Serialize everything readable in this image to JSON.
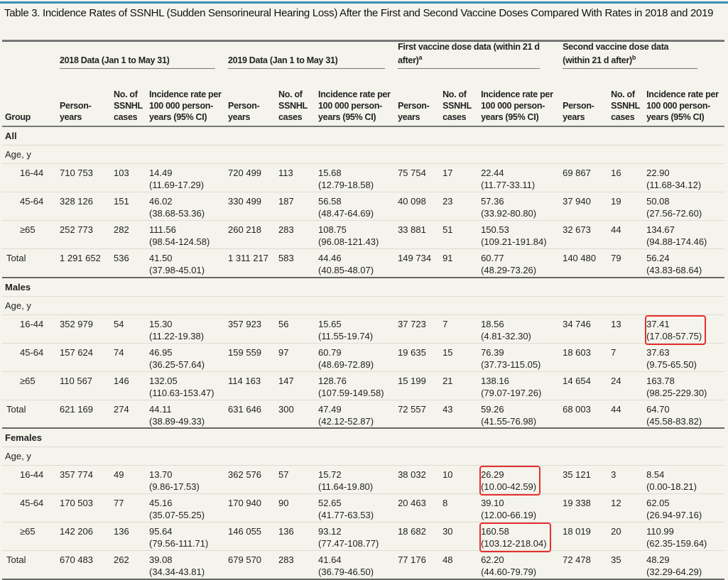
{
  "title": "Table 3. Incidence Rates of SSNHL (Sudden Sensorineural Hearing Loss) After the First and Second Vaccine Doses Compared With Rates in 2018 and 2019",
  "colors": {
    "accent_bar": "#3b8fb8",
    "highlight_box": "#e53030",
    "background": "#f4f3ec"
  },
  "header": {
    "groups": [
      {
        "label": "2018 Data (Jan 1 to May 31)",
        "sup": ""
      },
      {
        "label": "2019 Data (Jan 1 to May 31)",
        "sup": ""
      },
      {
        "label": "First vaccine dose data (within 21 d after)",
        "sup": "a"
      },
      {
        "label": "Second vaccine dose data (within 21 d after)",
        "sup": "b"
      }
    ],
    "group_col": "Group",
    "person_years": "Person-years",
    "cases_a": "No. of SSNHL cases",
    "rate": "Incidence rate per 100 000 person-years (95% CI)"
  },
  "age_label": "Age, y",
  "sections": [
    {
      "name": "All",
      "rows": [
        {
          "group": "16-44",
          "cells": [
            "710 753",
            "103",
            "14.49",
            "(11.69-17.29)",
            "720 499",
            "113",
            "15.68",
            "(12.79-18.58)",
            "75 754",
            "17",
            "22.44",
            "(11.77-33.11)",
            "69 867",
            "16",
            "22.90",
            "(11.68-34.12)"
          ],
          "highlight": []
        },
        {
          "group": "45-64",
          "cells": [
            "328 126",
            "151",
            "46.02",
            "(38.68-53.36)",
            "330 499",
            "187",
            "56.58",
            "(48.47-64.69)",
            "40 098",
            "23",
            "57.36",
            "(33.92-80.80)",
            "37 940",
            "19",
            "50.08",
            "(27.56-72.60)"
          ],
          "highlight": []
        },
        {
          "group": "≥65",
          "cells": [
            "252 773",
            "282",
            "111.56",
            "(98.54-124.58)",
            "260 218",
            "283",
            "108.75",
            "(96.08-121.43)",
            "33 881",
            "51",
            "150.53",
            "(109.21-191.84)",
            "32 673",
            "44",
            "134.67",
            "(94.88-174.46)"
          ],
          "highlight": []
        },
        {
          "group": "Total",
          "cells": [
            "1 291 652",
            "536",
            "41.50",
            "(37.98-45.01)",
            "1 311 217",
            "583",
            "44.46",
            "(40.85-48.07)",
            "149 734",
            "91",
            "60.77",
            "(48.29-73.26)",
            "140 480",
            "79",
            "56.24",
            "(43.83-68.64)"
          ],
          "highlight": []
        }
      ]
    },
    {
      "name": "Males",
      "rows": [
        {
          "group": "16-44",
          "cells": [
            "352 979",
            "54",
            "15.30",
            "(11.22-19.38)",
            "357 923",
            "56",
            "15.65",
            "(11.55-19.74)",
            "37 723",
            "7",
            "18.56",
            "(4.81-32.30)",
            "34 746",
            "13",
            "37.41",
            "(17.08-57.75)"
          ],
          "highlight": [
            3
          ]
        },
        {
          "group": "45-64",
          "cells": [
            "157 624",
            "74",
            "46.95",
            "(36.25-57.64)",
            "159 559",
            "97",
            "60.79",
            "(48.69-72.89)",
            "19 635",
            "15",
            "76.39",
            "(37.73-115.05)",
            "18 603",
            "7",
            "37.63",
            "(9.75-65.50)"
          ],
          "highlight": []
        },
        {
          "group": "≥65",
          "cells": [
            "110 567",
            "146",
            "132.05",
            "(110.63-153.47)",
            "114 163",
            "147",
            "128.76",
            "(107.59-149.58)",
            "15 199",
            "21",
            "138.16",
            "(79.07-197.26)",
            "14 654",
            "24",
            "163.78",
            "(98.25-229.30)"
          ],
          "highlight": []
        },
        {
          "group": "Total",
          "cells": [
            "621 169",
            "274",
            "44.11",
            "(38.89-49.33)",
            "631 646",
            "300",
            "47.49",
            "(42.12-52.87)",
            "72 557",
            "43",
            "59.26",
            "(41.55-76.98)",
            "68 003",
            "44",
            "64.70",
            "(45.58-83.82)"
          ],
          "highlight": []
        }
      ]
    },
    {
      "name": "Females",
      "rows": [
        {
          "group": "16-44",
          "cells": [
            "357 774",
            "49",
            "13.70",
            "(9.86-17.53)",
            "362 576",
            "57",
            "15.72",
            "(11.64-19.80)",
            "38 032",
            "10",
            "26.29",
            "(10.00-42.59)",
            "35 121",
            "3",
            "8.54",
            "(0.00-18.21)"
          ],
          "highlight": [
            2
          ]
        },
        {
          "group": "45-64",
          "cells": [
            "170 503",
            "77",
            "45.16",
            "(35.07-55.25)",
            "170 940",
            "90",
            "52.65",
            "(41.77-63.53)",
            "20 463",
            "8",
            "39.10",
            "(12.00-66.19)",
            "19 338",
            "12",
            "62.05",
            "(26.94-97.16)"
          ],
          "highlight": []
        },
        {
          "group": "≥65",
          "cells": [
            "142 206",
            "136",
            "95.64",
            "(79.56-111.71)",
            "146 055",
            "136",
            "93.12",
            "(77.47-108.77)",
            "18 682",
            "30",
            "160.58",
            "(103.12-218.04)",
            "18 019",
            "20",
            "110.99",
            "(62.35-159.64)"
          ],
          "highlight": [
            2
          ]
        },
        {
          "group": "Total",
          "cells": [
            "670 483",
            "262",
            "39.08",
            "(34.34-43.81)",
            "679 570",
            "283",
            "41.64",
            "(36.79-46.50)",
            "77 176",
            "48",
            "62.20",
            "(44.60-79.79)",
            "72 478",
            "35",
            "48.29",
            "(32.29-64.29)"
          ],
          "highlight": []
        }
      ]
    }
  ]
}
